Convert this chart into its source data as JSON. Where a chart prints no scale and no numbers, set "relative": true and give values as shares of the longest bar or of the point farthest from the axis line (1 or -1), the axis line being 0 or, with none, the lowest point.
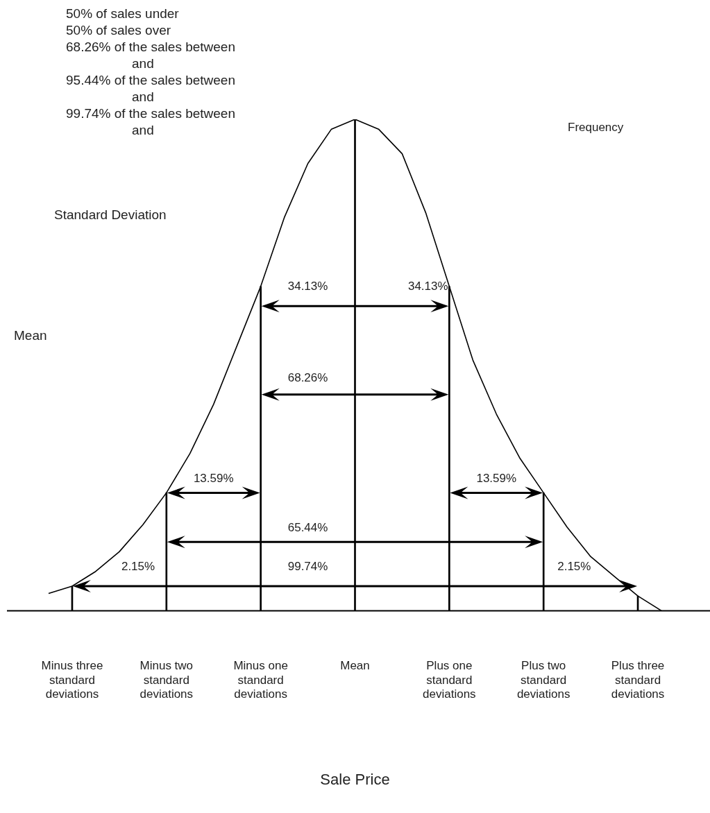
{
  "chart_data": {
    "type": "line",
    "relative": true,
    "xlabel": "Sale Price",
    "ylabel": "Frequency",
    "categories": [
      null,
      "Minus three standard deviations",
      null,
      null,
      null,
      "Minus two standard deviations",
      null,
      null,
      null,
      "Minus one standard deviations",
      null,
      null,
      null,
      "Mean",
      null,
      null,
      null,
      "Plus one standard deviations",
      null,
      null,
      null,
      "Plus two standard deviations",
      null,
      null,
      null,
      "Plus three standard deviations",
      null
    ],
    "grid": false,
    "legend": false,
    "series": [
      {
        "color": "#000000",
        "values": [
          0.035,
          0.05,
          0.08,
          0.12,
          0.175,
          0.24,
          0.32,
          0.42,
          0.54,
          0.66,
          0.8,
          0.91,
          0.98,
          1,
          0.98,
          0.93,
          0.81,
          0.66,
          0.51,
          0.4,
          0.31,
          0.24,
          0.17,
          0.11,
          0.07,
          0.03,
          0
        ]
      },
      {
        "type": "bar",
        "color": "#000000",
        "values": [
          null,
          0.05,
          null,
          null,
          null,
          0.24,
          null,
          null,
          null,
          0.66,
          null,
          null,
          null,
          1,
          null,
          null,
          null,
          0.66,
          null,
          null,
          null,
          0.24,
          null,
          null,
          null,
          0.03,
          null
        ]
      }
    ],
    "annotations": [
      "50% of sales under",
      "50% of sales over",
      "68.26% of the sales between",
      "and",
      "95.44% of the sales between",
      "and",
      "99.74% of the sales between",
      "and",
      "Standard Deviation",
      "Mean",
      "34.13%",
      "34.13%",
      "68.26%",
      "13.59%",
      "13.59%",
      "65.44%",
      "2.15%",
      "99.74%",
      "2.15%"
    ]
  }
}
